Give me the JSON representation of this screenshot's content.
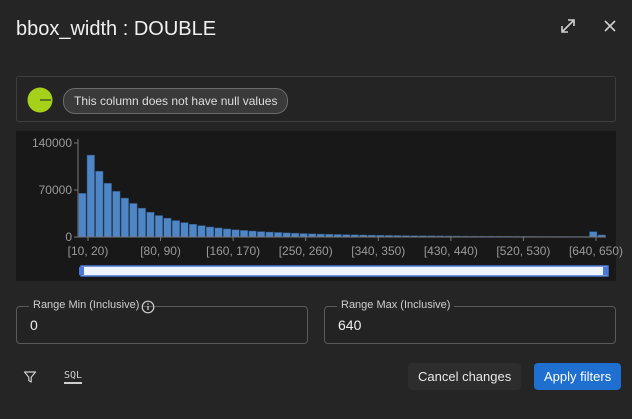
{
  "dialog": {
    "title": "bbox_width : DOUBLE",
    "icons": {
      "expand": "expand-icon",
      "close": "close-icon"
    }
  },
  "null_info": {
    "chip": "This column does not have null values",
    "null_fraction": 0
  },
  "chart_data": {
    "type": "bar",
    "ylim": [
      0,
      140000
    ],
    "y_ticks": [
      "0",
      "70000",
      "140000"
    ],
    "x_tick_labels": [
      "[10, 20)",
      "[80, 90)",
      "[160, 170)",
      "[250, 260)",
      "[340, 350)",
      "[430, 440)",
      "[520, 530)",
      "[640, 650)"
    ],
    "values": [
      65000,
      122000,
      98000,
      80000,
      68000,
      58000,
      50000,
      43000,
      37000,
      32000,
      28000,
      24500,
      21500,
      19000,
      17000,
      15000,
      13500,
      12000,
      10800,
      9800,
      8900,
      8100,
      7400,
      6800,
      6200,
      5700,
      5200,
      4800,
      4400,
      4100,
      3800,
      3500,
      3250,
      3000,
      2800,
      2600,
      2400,
      2250,
      2100,
      1950,
      1800,
      1700,
      1600,
      1500,
      1400,
      1320,
      1240,
      1170,
      1100,
      1040,
      980,
      930,
      880,
      830,
      790,
      750,
      710,
      680,
      650,
      620,
      8000,
      3000
    ],
    "color": "#4f86c6",
    "selected_range": [
      0,
      640
    ]
  },
  "range_min": {
    "label": "Range Min (Inclusive)",
    "value": "0"
  },
  "range_max": {
    "label": "Range Max (Inclusive)",
    "value": "640"
  },
  "footer": {
    "sql_label": "SQL",
    "cancel_label": "Cancel changes",
    "apply_label": "Apply filters"
  },
  "colors": {
    "accent": "#1f6fd1",
    "bar": "#4f86c6",
    "pie": "#a5d11a"
  }
}
